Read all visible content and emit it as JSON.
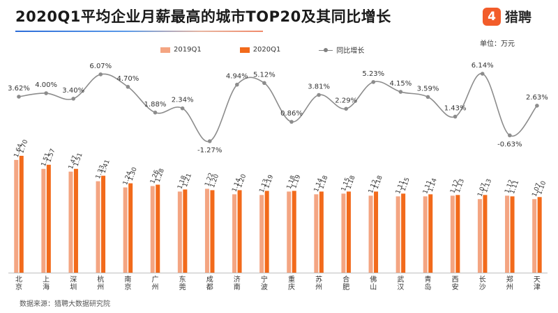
{
  "header": {
    "title": "2020Q1平均企业月薪最高的城市TOP20及其同比增长",
    "logo_text": "猎聘",
    "unit": "单位：万元"
  },
  "footer": {
    "source": "数据来源：猎聘大数据研究院"
  },
  "colors": {
    "series_2019": "#f4a582",
    "series_2020": "#f26a1b",
    "growth_line": "#8c8c8c",
    "brand": "#f25c2a"
  },
  "chart_data": {
    "type": "bar",
    "title": "2020Q1平均企业月薪最高的城市TOP20及其同比增长",
    "categories": [
      "北京",
      "上海",
      "深圳",
      "杭州",
      "南京",
      "广州",
      "东莞",
      "成都",
      "济南",
      "宁波",
      "重庆",
      "苏州",
      "合肥",
      "佛山",
      "武汉",
      "青岛",
      "西安",
      "长沙",
      "郑州",
      "天津"
    ],
    "category_labels": [
      "北\n京",
      "上\n海",
      "深\n圳",
      "杭\n州",
      "南\n京",
      "广\n州",
      "东\n莞",
      "成\n都",
      "济\n南",
      "宁\n波",
      "重\n庆",
      "苏\n州",
      "合\n肥",
      "佛\n山",
      "武\n汉",
      "青\n岛",
      "西\n安",
      "长\n沙",
      "郑\n州",
      "天\n津"
    ],
    "series": [
      {
        "name": "2019Q1",
        "values": [
          1.64,
          1.51,
          1.47,
          1.33,
          1.24,
          1.26,
          1.18,
          1.22,
          1.14,
          1.13,
          1.18,
          1.14,
          1.15,
          1.12,
          1.11,
          1.11,
          1.12,
          1.07,
          1.12,
          1.07
        ]
      },
      {
        "name": "2020Q1",
        "values": [
          1.7,
          1.57,
          1.51,
          1.41,
          1.3,
          1.28,
          1.21,
          1.2,
          1.2,
          1.19,
          1.19,
          1.18,
          1.18,
          1.18,
          1.15,
          1.14,
          1.13,
          1.13,
          1.11,
          1.1
        ]
      }
    ],
    "line_series": {
      "name": "同比增长",
      "values": [
        3.62,
        4.0,
        3.4,
        6.07,
        4.7,
        1.88,
        2.34,
        -1.27,
        4.94,
        5.12,
        0.86,
        3.81,
        2.29,
        5.23,
        4.15,
        3.59,
        1.43,
        6.14,
        -0.63,
        2.63
      ],
      "labels": [
        "3.62%",
        "4.00%",
        "3.40%",
        "6.07%",
        "4.70%",
        "1.88%",
        "2.34%",
        "-1.27%",
        "4.94%",
        "5.12%",
        "0.86%",
        "3.81%",
        "2.29%",
        "5.23%",
        "4.15%",
        "3.59%",
        "1.43%",
        "6.14%",
        "-0.63%",
        "2.63%"
      ]
    },
    "ylim_bars": [
      0,
      1.7
    ],
    "ylim_line": [
      -1.27,
      6.14
    ],
    "legend_position": "top",
    "grid": false
  }
}
